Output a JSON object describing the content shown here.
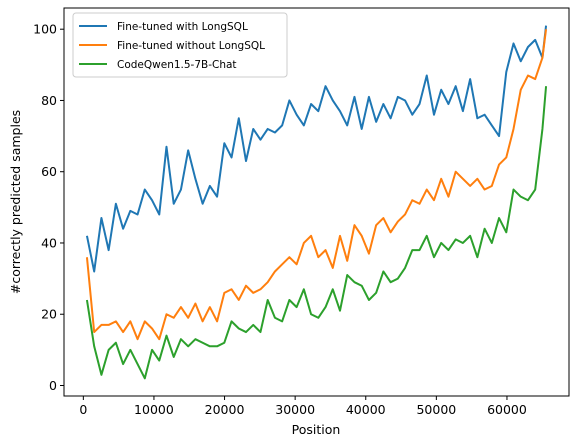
{
  "chart_data": {
    "type": "line",
    "xlabel": "Position",
    "ylabel": "#correctly predicted samples",
    "x": [
      512,
      1536,
      2560,
      3584,
      4608,
      5632,
      6656,
      7680,
      8704,
      9728,
      10752,
      11776,
      12800,
      13824,
      14848,
      15872,
      16896,
      17920,
      18944,
      19968,
      20992,
      22016,
      23040,
      24064,
      25088,
      26112,
      27136,
      28160,
      29184,
      30208,
      31232,
      32256,
      33280,
      34304,
      35328,
      36352,
      37376,
      38400,
      39424,
      40448,
      41472,
      42496,
      43520,
      44544,
      45568,
      46592,
      47616,
      48640,
      49664,
      50688,
      51712,
      52736,
      53760,
      54784,
      55808,
      56832,
      57856,
      58880,
      59904,
      60928,
      61952,
      62976,
      64000,
      65024,
      65536
    ],
    "series": [
      {
        "name": "Fine-tuned with LongSQL",
        "color": "#1f77b4",
        "values": [
          42,
          32,
          47,
          38,
          51,
          44,
          49,
          48,
          55,
          52,
          48,
          67,
          51,
          55,
          66,
          58,
          51,
          56,
          53,
          68,
          64,
          75,
          63,
          72,
          69,
          72,
          71,
          73,
          80,
          76,
          73,
          79,
          77,
          84,
          80,
          77,
          73,
          81,
          72,
          81,
          74,
          79,
          75,
          81,
          80,
          76,
          79,
          87,
          76,
          83,
          79,
          84,
          77,
          86,
          75,
          76,
          73,
          70,
          88,
          96,
          91,
          95,
          97,
          92,
          101
        ]
      },
      {
        "name": "Fine-tuned without LongSQL",
        "color": "#ff7f0e",
        "values": [
          36,
          15,
          17,
          17,
          18,
          15,
          18,
          13,
          18,
          16,
          13,
          20,
          19,
          22,
          19,
          23,
          18,
          22,
          18,
          26,
          27,
          24,
          28,
          26,
          27,
          29,
          32,
          34,
          36,
          34,
          40,
          42,
          36,
          38,
          33,
          42,
          35,
          45,
          42,
          37,
          45,
          47,
          43,
          46,
          48,
          52,
          51,
          55,
          52,
          58,
          53,
          60,
          58,
          56,
          58,
          55,
          56,
          62,
          64,
          72,
          83,
          87,
          86,
          92,
          100
        ]
      },
      {
        "name": "CodeQwen1.5-7B-Chat",
        "color": "#2ca02c",
        "values": [
          24,
          11,
          3,
          10,
          12,
          6,
          10,
          6,
          2,
          10,
          7,
          14,
          8,
          13,
          11,
          13,
          12,
          11,
          11,
          12,
          18,
          16,
          15,
          17,
          15,
          24,
          19,
          18,
          24,
          22,
          27,
          20,
          19,
          22,
          27,
          21,
          31,
          29,
          28,
          24,
          26,
          32,
          29,
          30,
          33,
          38,
          38,
          42,
          36,
          40,
          38,
          41,
          40,
          42,
          36,
          44,
          40,
          47,
          43,
          55,
          53,
          52,
          55,
          72,
          84
        ]
      }
    ],
    "xlim": [
      -2739,
      68787
    ],
    "xticks": [
      0,
      10000,
      20000,
      30000,
      40000,
      50000,
      60000
    ],
    "ylim": [
      -2.95,
      105.95
    ],
    "yticks": [
      0,
      20,
      40,
      60,
      80,
      100
    ],
    "grid": false,
    "legend": "upper left"
  }
}
